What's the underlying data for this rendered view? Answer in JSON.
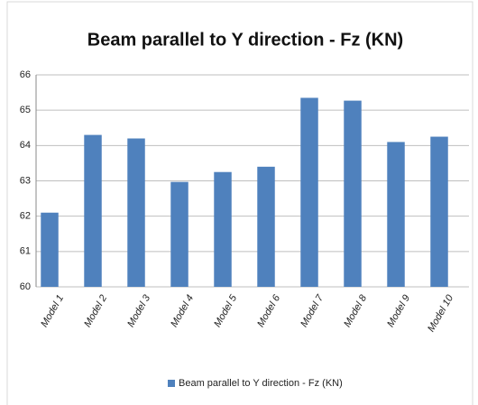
{
  "chart_data": {
    "type": "bar",
    "title": "Beam parallel to Y direction - Fz (KN)",
    "categories": [
      "Model 1",
      "Model 2",
      "Model 3",
      "Model 4",
      "Model 5",
      "Model 6",
      "Model 7",
      "Model 8",
      "Model 9",
      "Model 10"
    ],
    "series": [
      {
        "name": "Beam parallel to Y direction - Fz (KN)",
        "color": "#4f81bd",
        "values": [
          62.1,
          64.3,
          64.2,
          62.97,
          63.25,
          63.4,
          65.35,
          65.27,
          64.1,
          64.25
        ]
      }
    ],
    "ylim": [
      60,
      66
    ],
    "yticks": [
      60,
      61,
      62,
      63,
      64,
      65,
      66
    ],
    "grid": true,
    "legend": "bottom"
  }
}
